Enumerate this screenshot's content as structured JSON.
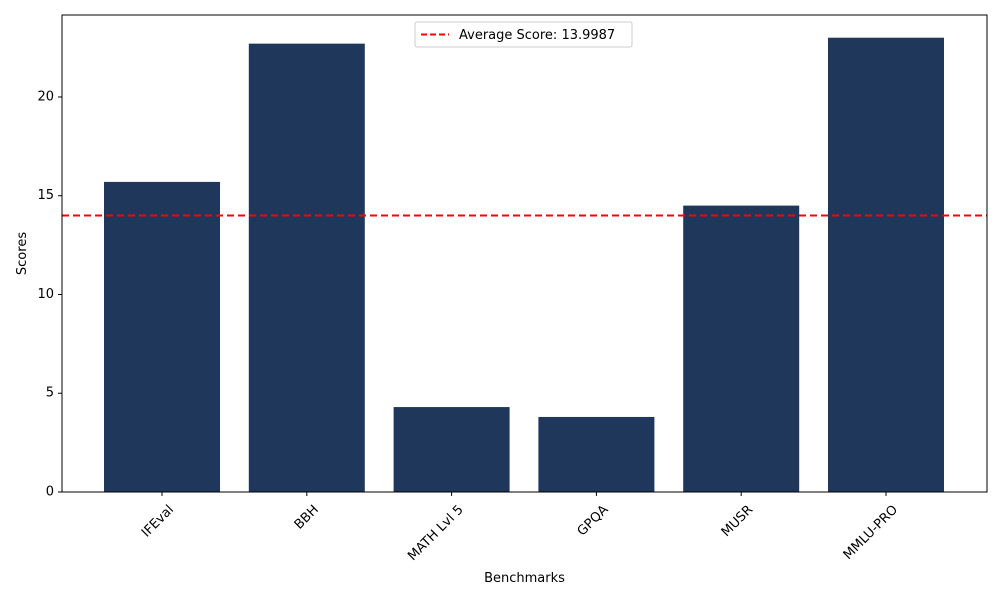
{
  "chart_data": {
    "type": "bar",
    "categories": [
      "IFEval",
      "BBH",
      "MATH Lvl 5",
      "GPQA",
      "MUSR",
      "MMLU-PRO"
    ],
    "values": [
      15.7,
      22.7,
      4.3,
      3.8,
      14.5,
      23.0
    ],
    "xlabel": "Benchmarks",
    "ylabel": "Scores",
    "ylim": [
      0,
      24.15
    ],
    "yticks": [
      0,
      5,
      10,
      15,
      20
    ],
    "x_tick_rotation_deg": 45,
    "bar_color": "#1f375a",
    "average_line": {
      "value": 13.9987,
      "label": "Average Score: 13.9987",
      "color": "#ff0000",
      "style": "dashed"
    },
    "legend_position": "top-center",
    "grid": false
  }
}
